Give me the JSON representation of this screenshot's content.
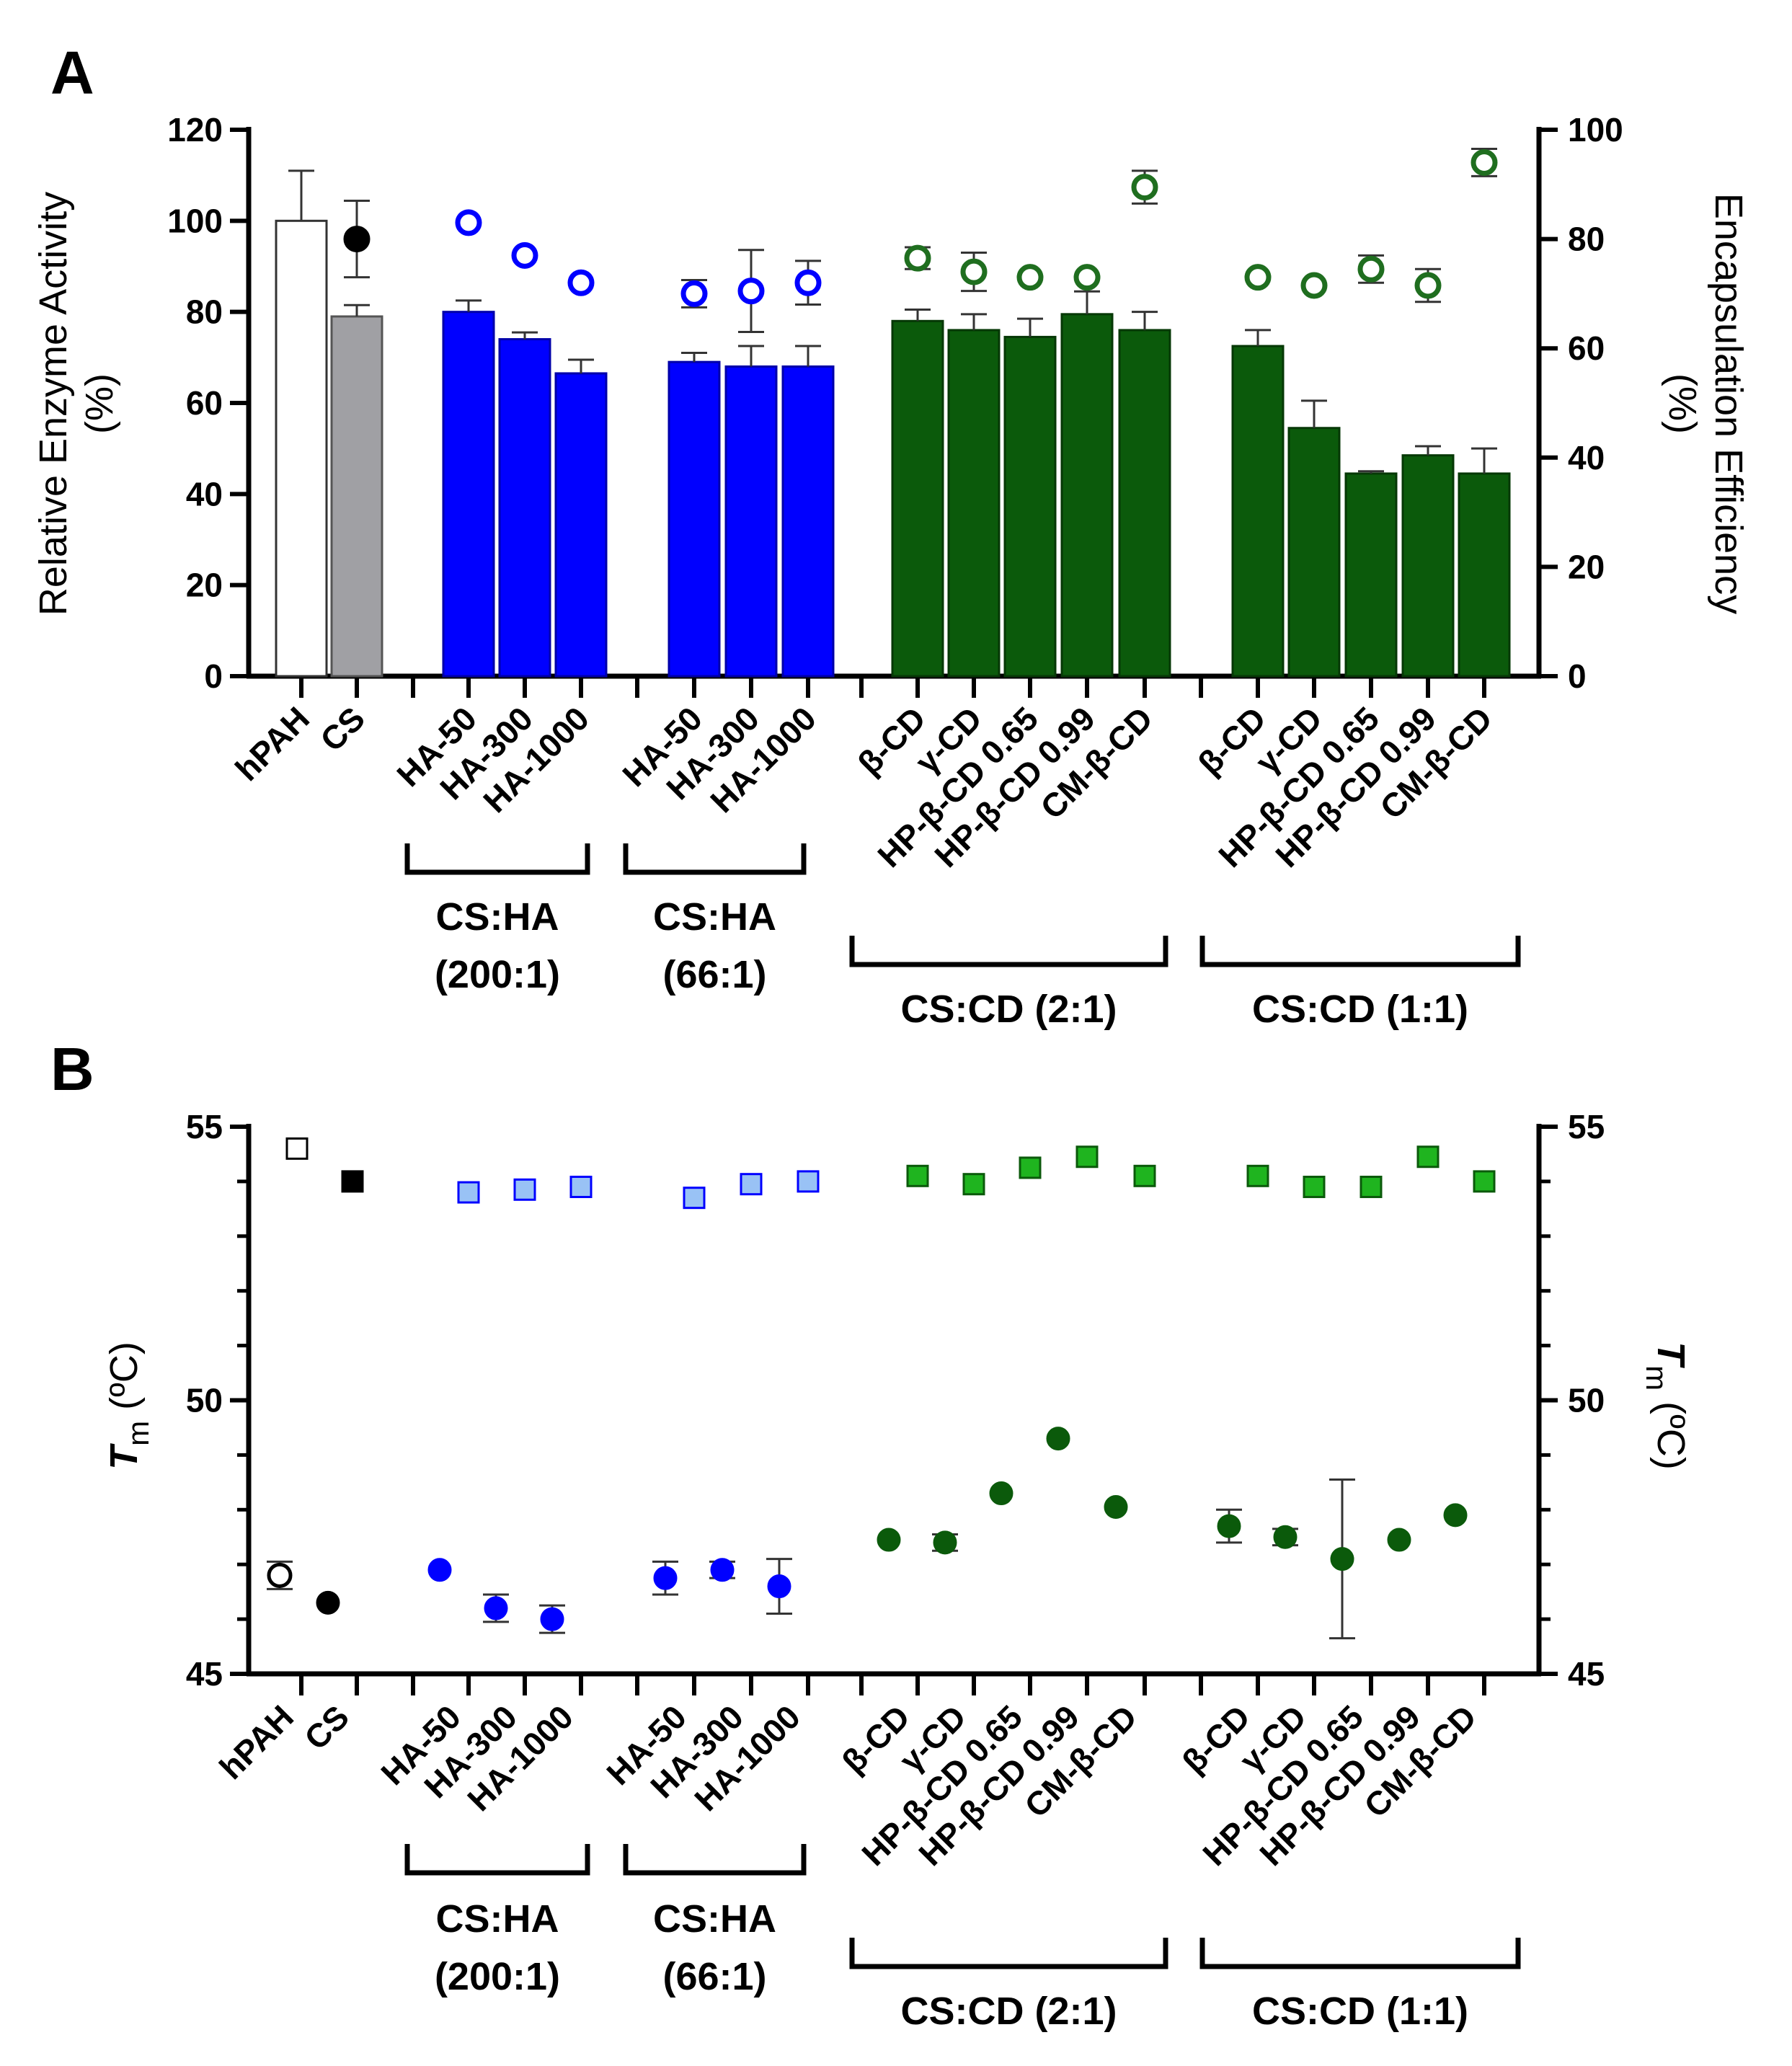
{
  "chart_data": [
    {
      "panel": "A",
      "type": "bar",
      "categories": [
        "hPAH",
        "CS",
        "HA-50",
        "HA-300",
        "HA-1000",
        "HA-50",
        "HA-300",
        "HA-1000",
        "β-CD",
        "γ-CD",
        "HP-β-CD 0.65",
        "HP-β-CD 0.99",
        "CM-β-CD",
        "β-CD",
        "γ-CD",
        "HP-β-CD 0.65",
        "HP-β-CD 0.99",
        "CM-β-CD"
      ],
      "groups": [
        {
          "label_lines": [
            "CS:HA",
            "(200:1)"
          ],
          "from": 2,
          "to": 4
        },
        {
          "label_lines": [
            "CS:HA",
            "(66:1)"
          ],
          "from": 5,
          "to": 7
        },
        {
          "label_lines": [
            "CS:CD (2:1)"
          ],
          "from": 8,
          "to": 12
        },
        {
          "label_lines": [
            "CS:CD (1:1)"
          ],
          "from": 13,
          "to": 17
        }
      ],
      "ylabel_left": [
        "Relative Enzyme Activity",
        "(%)"
      ],
      "ylabel_right": [
        "Encapsulation Efficiency",
        "(%)"
      ],
      "ylim_left": [
        0,
        120
      ],
      "ylim_right": [
        0,
        100
      ],
      "yticks_left": [
        "0",
        "20",
        "40",
        "60",
        "80",
        "100",
        "120"
      ],
      "yticks_right": [
        "0",
        "20",
        "40",
        "60",
        "80",
        "100"
      ],
      "series": [
        {
          "name": "Relative Enzyme Activity",
          "axis": "left",
          "kind": "bar",
          "values": [
            100,
            79,
            80,
            74,
            66.5,
            69,
            68,
            68,
            78,
            76,
            74.5,
            79.5,
            76,
            72.5,
            54.5,
            44.5,
            48.5,
            44.5
          ],
          "errors": [
            11,
            2.5,
            2.5,
            1.5,
            3,
            2,
            4.5,
            4.5,
            2.5,
            3.5,
            4,
            5,
            4,
            3.5,
            6,
            0.5,
            2,
            5.5
          ],
          "colors": [
            "#ffffff",
            "#a0a0a4",
            "#0000ff",
            "#0000ff",
            "#0000ff",
            "#0000ff",
            "#0000ff",
            "#0000ff",
            "#0b5a0b",
            "#0b5a0b",
            "#0b5a0b",
            "#0b5a0b",
            "#0b5a0b",
            "#0b5a0b",
            "#0b5a0b",
            "#0b5a0b",
            "#0b5a0b",
            "#0b5a0b"
          ]
        },
        {
          "name": "Encapsulation Efficiency",
          "axis": "right",
          "kind": "marker",
          "values": [
            null,
            80,
            83,
            77,
            72,
            70,
            70.5,
            72,
            76.5,
            74,
            73,
            73,
            89.5,
            73,
            71.5,
            74.5,
            71.5,
            94
          ],
          "errors": [
            null,
            7,
            0,
            0,
            0,
            2.5,
            7.5,
            4,
            2,
            3.5,
            0,
            0,
            3,
            0,
            0,
            2.5,
            3,
            2.5
          ],
          "fill": [
            "none",
            "#000000",
            "#ffffff",
            "#ffffff",
            "#ffffff",
            "#ffffff",
            "#ffffff",
            "#ffffff",
            "#ffffff",
            "#ffffff",
            "#ffffff",
            "#ffffff",
            "#ffffff",
            "#ffffff",
            "#ffffff",
            "#ffffff",
            "#ffffff",
            "#ffffff"
          ],
          "stroke": [
            "none",
            "#000000",
            "#0000ff",
            "#0000ff",
            "#0000ff",
            "#0000ff",
            "#0000ff",
            "#0000ff",
            "#1f6e1f",
            "#1f6e1f",
            "#1f6e1f",
            "#1f6e1f",
            "#1f6e1f",
            "#1f6e1f",
            "#1f6e1f",
            "#1f6e1f",
            "#1f6e1f",
            "#1f6e1f"
          ]
        }
      ]
    },
    {
      "panel": "B",
      "type": "scatter",
      "categories": [
        "hPAH",
        "CS",
        "HA-50",
        "HA-300",
        "HA-1000",
        "HA-50",
        "HA-300",
        "HA-1000",
        "β-CD",
        "γ-CD",
        "HP-β-CD 0.65",
        "HP-β-CD 0.99",
        "CM-β-CD",
        "β-CD",
        "γ-CD",
        "HP-β-CD 0.65",
        "HP-β-CD 0.99",
        "CM-β-CD"
      ],
      "groups": [
        {
          "label_lines": [
            "CS:HA",
            "(200:1)"
          ],
          "from": 2,
          "to": 4
        },
        {
          "label_lines": [
            "CS:HA",
            "(66:1)"
          ],
          "from": 5,
          "to": 7
        },
        {
          "label_lines": [
            "CS:CD (2:1)"
          ],
          "from": 8,
          "to": 12
        },
        {
          "label_lines": [
            "CS:CD (1:1)"
          ],
          "from": 13,
          "to": 17
        }
      ],
      "ylabel_main": "T",
      "ylabel_sub": "m",
      "ylabel_unit": " (ºC)",
      "ylim": [
        45,
        55
      ],
      "yticks": [
        "45",
        "50",
        "55"
      ],
      "series": [
        {
          "name": "Tm circles",
          "marker": "circle",
          "values": [
            46.8,
            46.3,
            46.9,
            46.2,
            46.0,
            46.75,
            46.9,
            46.6,
            47.45,
            47.4,
            48.3,
            49.3,
            48.05,
            47.7,
            47.5,
            47.1,
            47.45,
            47.9
          ],
          "errors": [
            0.25,
            0,
            0,
            0.25,
            0.25,
            0.3,
            0.15,
            0.5,
            0,
            0.15,
            0,
            0,
            0,
            0.3,
            0.15,
            1.45,
            0,
            0
          ],
          "fill": [
            "#ffffff",
            "#000000",
            "#0000ff",
            "#0000ff",
            "#0000ff",
            "#0000ff",
            "#0000ff",
            "#0000ff",
            "#0b5a0b",
            "#0b5a0b",
            "#0b5a0b",
            "#0b5a0b",
            "#0b5a0b",
            "#0b5a0b",
            "#0b5a0b",
            "#0b5a0b",
            "#0b5a0b",
            "#0b5a0b"
          ],
          "stroke": [
            "#000000",
            "#000000",
            "#0000ff",
            "#0000ff",
            "#0000ff",
            "#0000ff",
            "#0000ff",
            "#0000ff",
            "#0b5a0b",
            "#0b5a0b",
            "#0b5a0b",
            "#0b5a0b",
            "#0b5a0b",
            "#0b5a0b",
            "#0b5a0b",
            "#0b5a0b",
            "#0b5a0b",
            "#0b5a0b"
          ]
        },
        {
          "name": "Tm squares",
          "marker": "square",
          "values": [
            54.6,
            54.0,
            53.8,
            53.85,
            53.9,
            53.7,
            53.95,
            54.0,
            54.1,
            53.95,
            54.25,
            54.45,
            54.1,
            54.1,
            53.9,
            53.9,
            54.45,
            54.0
          ],
          "fill": [
            "#ffffff",
            "#000000",
            "#99c2f5",
            "#99c2f5",
            "#99c2f5",
            "#99c2f5",
            "#99c2f5",
            "#99c2f5",
            "#1fb41f",
            "#1fb41f",
            "#1fb41f",
            "#1fb41f",
            "#1fb41f",
            "#1fb41f",
            "#1fb41f",
            "#1fb41f",
            "#1fb41f",
            "#1fb41f"
          ],
          "stroke": [
            "#000000",
            "#000000",
            "#0000ff",
            "#0000ff",
            "#0000ff",
            "#0000ff",
            "#0000ff",
            "#0000ff",
            "#0b5a0b",
            "#0b5a0b",
            "#0b5a0b",
            "#0b5a0b",
            "#0b5a0b",
            "#0b5a0b",
            "#0b5a0b",
            "#0b5a0b",
            "#0b5a0b",
            "#0b5a0b"
          ]
        }
      ]
    }
  ]
}
